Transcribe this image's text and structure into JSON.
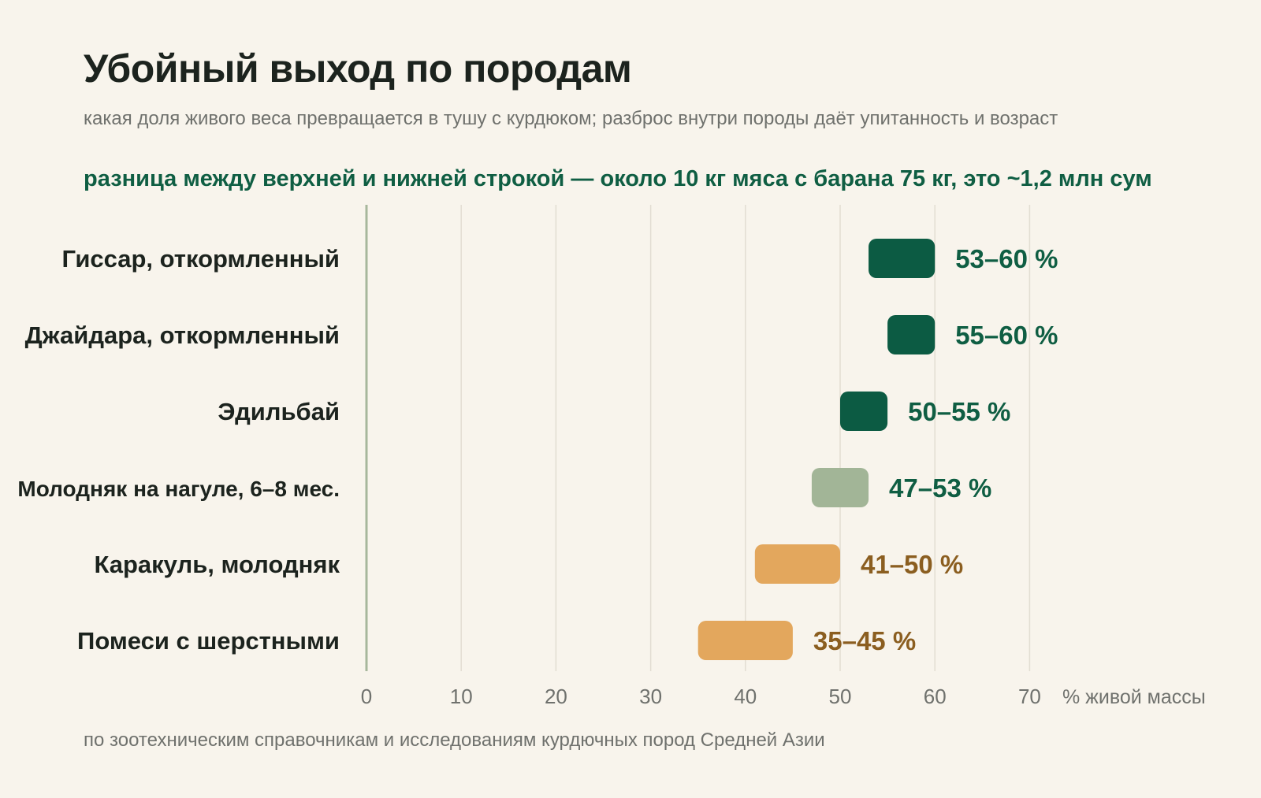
{
  "header": {
    "title": "Убойный выход по породам",
    "subtitle": "какая доля живого веса превращается в тушу с курдюком; разброс внутри породы даёт упитанность и возраст",
    "callout": "разница между верхней и нижней строкой — около 10 кг мяса с барана 75 кг, это ~1,2 млн сум"
  },
  "footer": {
    "source": "по зоотехническим справочникам и исследованиям курдючных пород Средней Азии"
  },
  "colors": {
    "dark_green": "#0c5b43",
    "sage": "#a2b597",
    "orange": "#e3a75d",
    "label_green": "#0f5e43",
    "label_brown": "#8b5e20",
    "axis_line": "#a7b79c",
    "grid": "#e2ddd2"
  },
  "chart_data": {
    "type": "range-bar",
    "xlabel": "% живой массы",
    "xlim": [
      0,
      70
    ],
    "xticks": [
      0,
      10,
      20,
      30,
      40,
      50,
      60,
      70
    ],
    "xtick_labels": [
      "0",
      "10",
      "20",
      "30",
      "40",
      "50",
      "60",
      "70"
    ],
    "grid": true,
    "categories": [
      "Гиссар, откормленный",
      "Джайдара, откормленный",
      "Эдильбай",
      "Молодняк на нагуле, 6–8 мес.",
      "Каракуль, молодняк",
      "Помеси с шерстными"
    ],
    "ranges": [
      {
        "low": 53,
        "high": 60,
        "label": "53–60 %",
        "color": "dark_green",
        "label_color": "label_green"
      },
      {
        "low": 55,
        "high": 60,
        "label": "55–60 %",
        "color": "dark_green",
        "label_color": "label_green"
      },
      {
        "low": 50,
        "high": 55,
        "label": "50–55 %",
        "color": "dark_green",
        "label_color": "label_green"
      },
      {
        "low": 47,
        "high": 53,
        "label": "47–53 %",
        "color": "sage",
        "label_color": "label_green"
      },
      {
        "low": 41,
        "high": 50,
        "label": "41–50 %",
        "color": "orange",
        "label_color": "label_brown"
      },
      {
        "low": 35,
        "high": 45,
        "label": "35–45 %",
        "color": "orange",
        "label_color": "label_brown"
      }
    ]
  }
}
